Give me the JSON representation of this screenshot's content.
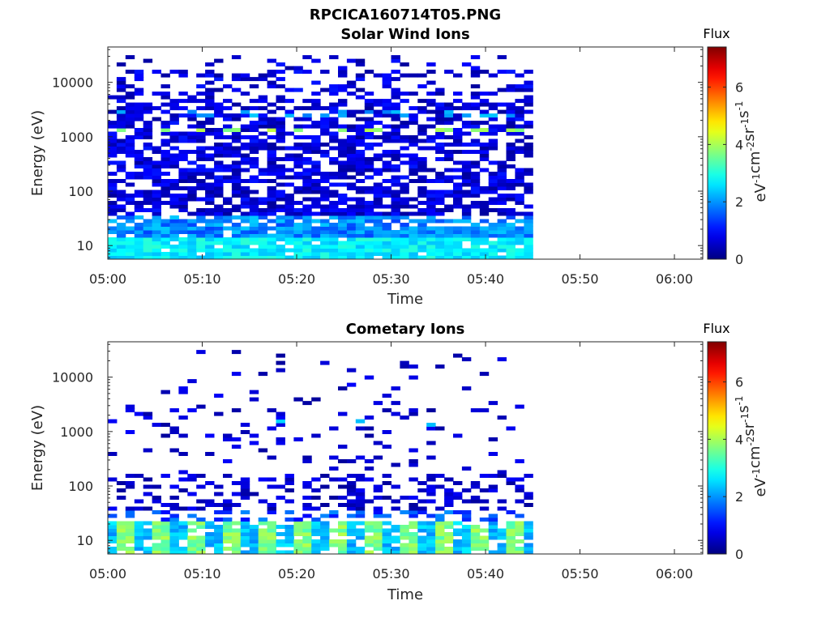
{
  "figure": {
    "title": "RPCICA160714T05.PNG"
  },
  "colorbar": {
    "label": "Flux",
    "ticks": [
      "0",
      "2",
      "4",
      "6"
    ],
    "range": [
      0,
      7.4
    ],
    "colormap": "jet",
    "unit_base": "eV",
    "unit_parts": [
      {
        "base": "eV",
        "exp": "-1"
      },
      {
        "base": "cm",
        "exp": "-2"
      },
      {
        "base": "sr",
        "exp": "-1"
      },
      {
        "base": "s",
        "exp": "-1"
      }
    ]
  },
  "chart_data": [
    {
      "type": "heatmap",
      "title": "Solar Wind Ions",
      "xlabel": "Time",
      "ylabel": "Energy (eV)",
      "xticks": [
        "05:00",
        "05:10",
        "05:20",
        "05:30",
        "05:40",
        "05:50",
        "06:00"
      ],
      "yticks": [
        "10",
        "100",
        "1000",
        "10000"
      ],
      "xlim_minutes": [
        0,
        63
      ],
      "data_extent_minutes": [
        0,
        45
      ],
      "ylim_log10": [
        0.75,
        4.65
      ],
      "yscale": "log",
      "grid": false,
      "features": {
        "bands": [
          {
            "energy_log10": 3.1,
            "value": 4.0,
            "note": "periodic green peaks at ~1200 eV"
          },
          {
            "energy_log10": 1.1,
            "value": 2.6,
            "note": "strong cyan band at low energy"
          }
        ],
        "background_value": 0.4
      }
    },
    {
      "type": "heatmap",
      "title": "Cometary Ions",
      "xlabel": "Time",
      "ylabel": "Energy (eV)",
      "xticks": [
        "05:00",
        "05:10",
        "05:20",
        "05:30",
        "05:40",
        "05:50",
        "06:00"
      ],
      "yticks": [
        "10",
        "100",
        "1000",
        "10000"
      ],
      "xlim_minutes": [
        0,
        63
      ],
      "data_extent_minutes": [
        0,
        45
      ],
      "ylim_log10": [
        0.75,
        4.65
      ],
      "yscale": "log",
      "grid": false,
      "features": {
        "bands": [
          {
            "energy_log10": 1.05,
            "value": 3.6,
            "note": "periodic yellow-green blocks at ~10 eV"
          },
          {
            "energy_log10": 1.35,
            "value": 1.3,
            "note": "blue band ~25 eV"
          }
        ],
        "background_value": 0.3
      }
    }
  ]
}
